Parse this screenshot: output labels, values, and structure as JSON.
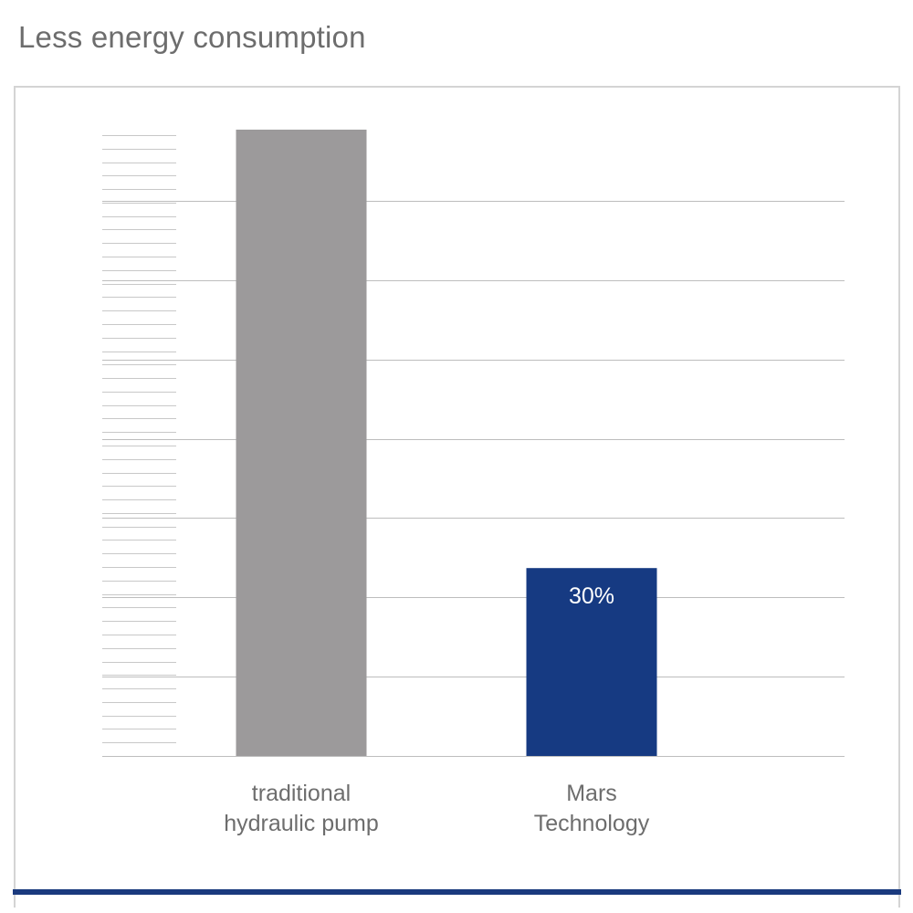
{
  "title": "Less energy consumption",
  "chart_data": {
    "type": "bar",
    "categories": [
      [
        "traditional",
        "hydraulic pump"
      ],
      [
        "Mars",
        "Technology"
      ]
    ],
    "values": [
      100,
      30
    ],
    "data_labels": [
      "",
      "30%"
    ],
    "bar_colors": [
      "#9c9a9b",
      "#163a82"
    ],
    "ylim": [
      0,
      100
    ],
    "major_gridlines": [
      0,
      12.7,
      25.3,
      38,
      50.6,
      63.3,
      75.9,
      88.6
    ],
    "minor_ticks": 47,
    "grid": true,
    "legend": "none"
  }
}
